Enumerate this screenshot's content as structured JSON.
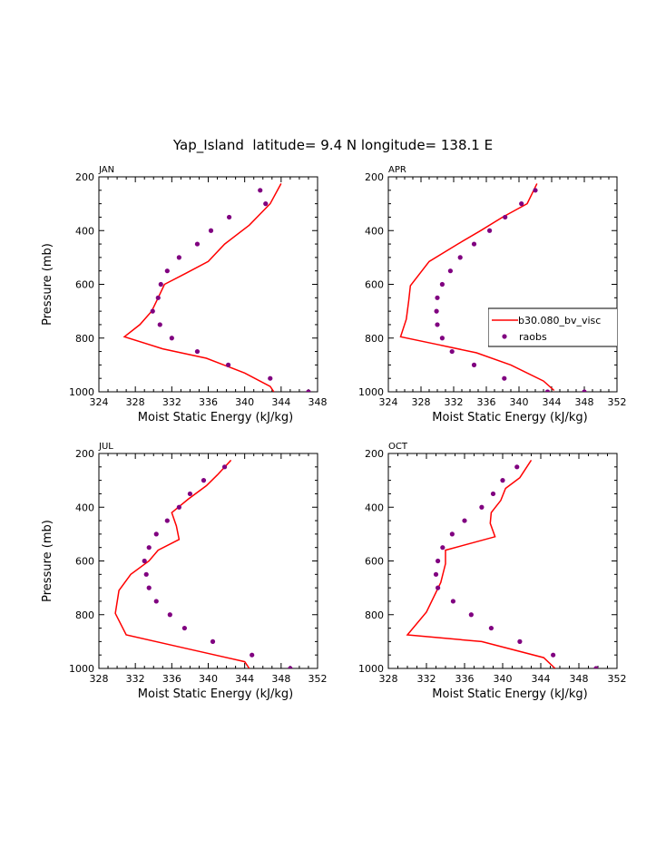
{
  "title": "Yap_Island  latitude= 9.4 N longitude= 138.1 E",
  "colors": {
    "model": "#ff0000",
    "obs": "#800080",
    "axis": "#000000"
  },
  "legend": {
    "model_label": "b30.080_bv_visc",
    "obs_label": "raobs"
  },
  "chart_data": [
    {
      "type": "line",
      "panel": "JAN",
      "xlabel": "Moist Static Energy (kJ/kg)",
      "ylabel": "Pressure (mb)",
      "xlim": [
        324,
        348
      ],
      "xticks": [
        324,
        328,
        332,
        336,
        340,
        344,
        348
      ],
      "ylim": [
        200,
        1000
      ],
      "yticks": [
        200,
        400,
        600,
        800,
        1000
      ],
      "series": [
        {
          "name": "b30.080_bv_visc",
          "style": "line",
          "x": [
            344.0,
            342.8,
            340.5,
            337.8,
            336.0,
            333.5,
            331.2,
            330.5,
            329.8,
            328.5,
            326.8,
            331.0,
            335.8,
            340.0,
            342.8,
            343.2
          ],
          "y": [
            225,
            300,
            380,
            450,
            515,
            560,
            600,
            650,
            700,
            750,
            795,
            840,
            875,
            930,
            980,
            1000
          ]
        },
        {
          "name": "raobs",
          "style": "scatter",
          "x": [
            341.7,
            342.3,
            338.3,
            336.3,
            334.8,
            332.8,
            331.5,
            330.8,
            330.5,
            329.9,
            330.7,
            332.0,
            334.8,
            338.2,
            342.8,
            347.0
          ],
          "y": [
            250,
            300,
            350,
            400,
            450,
            500,
            550,
            600,
            650,
            700,
            750,
            800,
            850,
            900,
            950,
            1000
          ]
        }
      ]
    },
    {
      "type": "line",
      "panel": "APR",
      "xlabel": "Moist Static Energy (kJ/kg)",
      "ylabel": "",
      "xlim": [
        324,
        352
      ],
      "xticks": [
        324,
        328,
        332,
        336,
        340,
        344,
        348,
        352
      ],
      "ylim": [
        200,
        1000
      ],
      "yticks": [
        200,
        400,
        600,
        800,
        1000
      ],
      "series": [
        {
          "name": "b30.080_bv_visc",
          "style": "line",
          "x": [
            342.2,
            341.0,
            338.0,
            335.3,
            332.5,
            329.0,
            326.7,
            326.5,
            326.2,
            325.5,
            330.2,
            334.8,
            339.0,
            343.0,
            344.3
          ],
          "y": [
            225,
            300,
            350,
            400,
            450,
            515,
            605,
            660,
            730,
            795,
            825,
            855,
            900,
            960,
            995
          ]
        },
        {
          "name": "raobs",
          "style": "scatter",
          "x": [
            342.0,
            340.3,
            338.3,
            336.4,
            334.5,
            332.8,
            331.6,
            330.6,
            330.0,
            329.9,
            330.0,
            330.6,
            331.8,
            334.5,
            338.2,
            343.5,
            348.0
          ],
          "y": [
            250,
            300,
            350,
            400,
            450,
            500,
            550,
            600,
            650,
            700,
            750,
            800,
            850,
            900,
            950,
            1000,
            1000
          ]
        }
      ]
    },
    {
      "type": "line",
      "panel": "JUL",
      "xlabel": "Moist Static Energy (kJ/kg)",
      "ylabel": "Pressure (mb)",
      "xlim": [
        328,
        352
      ],
      "xticks": [
        328,
        332,
        336,
        340,
        344,
        348,
        352
      ],
      "ylim": [
        200,
        1000
      ],
      "yticks": [
        200,
        400,
        600,
        800,
        1000
      ],
      "series": [
        {
          "name": "b30.080_bv_visc",
          "style": "line",
          "x": [
            342.5,
            341.0,
            339.8,
            337.8,
            336.0,
            336.5,
            336.8,
            334.5,
            333.5,
            331.5,
            330.2,
            329.8,
            331.0,
            337.5,
            344.0,
            344.5
          ],
          "y": [
            225,
            280,
            320,
            370,
            420,
            470,
            520,
            560,
            600,
            650,
            710,
            795,
            875,
            925,
            975,
            1000
          ]
        },
        {
          "name": "raobs",
          "style": "scatter",
          "x": [
            341.8,
            339.5,
            338.0,
            336.8,
            335.5,
            334.3,
            333.5,
            333.0,
            333.2,
            333.5,
            334.3,
            335.8,
            337.4,
            340.5,
            344.8,
            349.0
          ],
          "y": [
            250,
            300,
            350,
            400,
            450,
            500,
            550,
            600,
            650,
            700,
            750,
            800,
            850,
            900,
            950,
            1000
          ]
        }
      ]
    },
    {
      "type": "line",
      "panel": "OCT",
      "xlabel": "Moist Static Energy (kJ/kg)",
      "ylabel": "",
      "xlim": [
        328,
        352
      ],
      "xticks": [
        328,
        332,
        336,
        340,
        344,
        348,
        352
      ],
      "ylim": [
        200,
        1000
      ],
      "yticks": [
        200,
        400,
        600,
        800,
        1000
      ],
      "series": [
        {
          "name": "b30.080_bv_visc",
          "style": "line",
          "x": [
            343.0,
            341.8,
            340.3,
            339.8,
            338.8,
            338.7,
            339.2,
            334.0,
            334.0,
            333.5,
            332.0,
            330.0,
            337.8,
            344.3,
            345.5
          ],
          "y": [
            225,
            290,
            330,
            375,
            420,
            460,
            510,
            560,
            610,
            680,
            790,
            875,
            900,
            960,
            1000
          ]
        },
        {
          "name": "raobs",
          "style": "scatter",
          "x": [
            341.5,
            340.0,
            339.0,
            337.8,
            336.0,
            334.7,
            333.7,
            333.2,
            333.0,
            333.2,
            334.8,
            336.7,
            338.8,
            341.8,
            345.3,
            349.8
          ],
          "y": [
            250,
            300,
            350,
            400,
            450,
            500,
            550,
            600,
            650,
            700,
            750,
            800,
            850,
            900,
            950,
            1000
          ]
        }
      ]
    }
  ]
}
